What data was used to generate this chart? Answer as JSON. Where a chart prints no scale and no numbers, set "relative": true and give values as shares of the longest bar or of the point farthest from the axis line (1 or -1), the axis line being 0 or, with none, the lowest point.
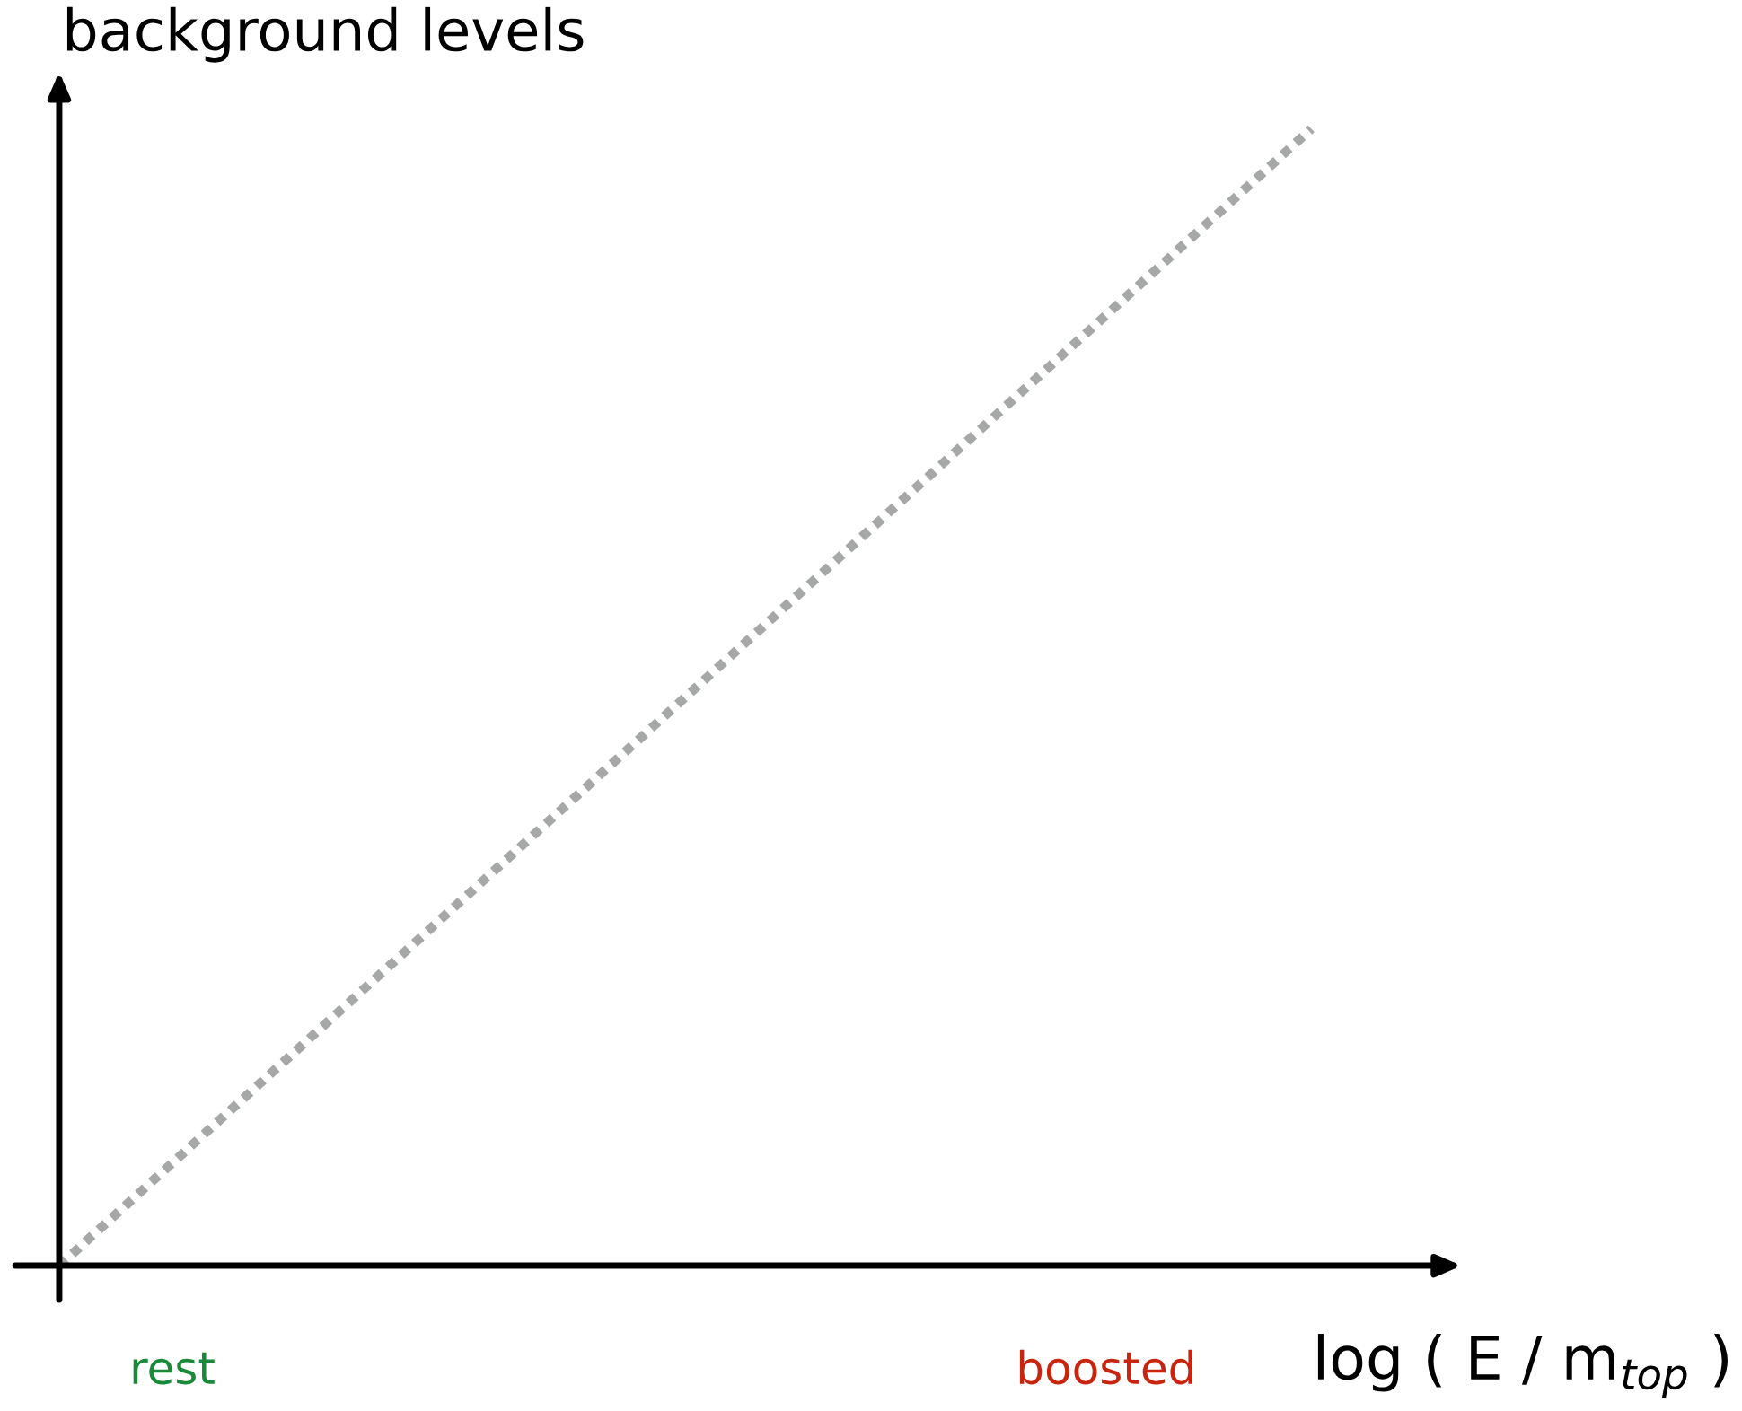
{
  "chart_data": {
    "type": "line",
    "relative": true,
    "xlabel": "log ( E / m$_{top}$ )",
    "ylabel": "background levels",
    "categories": [
      null,
      null
    ],
    "series": [
      {
        "color": "#a6a8a8",
        "values": [
          0,
          1
        ]
      }
    ],
    "line_style": "dotted",
    "marker": "none",
    "annotations": [
      "rest",
      "boosted"
    ]
  }
}
